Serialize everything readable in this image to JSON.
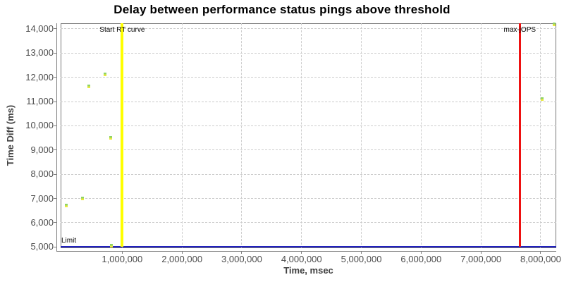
{
  "chart": {
    "title": "Delay between performance status pings above threshold",
    "x_axis_label": "Time, msec",
    "y_axis_label": "Time Diff (ms)"
  },
  "chart_data": {
    "type": "scatter",
    "title": "Delay between performance status pings above threshold",
    "xlabel": "Time, msec",
    "ylabel": "Time Diff (ms)",
    "xlim": [
      -30000,
      8260000
    ],
    "ylim": [
      4950,
      14230
    ],
    "grid": true,
    "legend": "none",
    "x_ticks": [
      {
        "value": 1000000,
        "label": "1,000,000"
      },
      {
        "value": 2000000,
        "label": "2,000,000"
      },
      {
        "value": 3000000,
        "label": "3,000,000"
      },
      {
        "value": 4000000,
        "label": "4,000,000"
      },
      {
        "value": 5000000,
        "label": "5,000,000"
      },
      {
        "value": 6000000,
        "label": "6,000,000"
      },
      {
        "value": 7000000,
        "label": "7,000,000"
      },
      {
        "value": 8000000,
        "label": "8,000,000"
      }
    ],
    "y_ticks": [
      {
        "value": 5000,
        "label": "5,000"
      },
      {
        "value": 6000,
        "label": "6,000"
      },
      {
        "value": 7000,
        "label": "7,000"
      },
      {
        "value": 8000,
        "label": "8,000"
      },
      {
        "value": 9000,
        "label": "9,000"
      },
      {
        "value": 10000,
        "label": "10,000"
      },
      {
        "value": 11000,
        "label": "11,000"
      },
      {
        "value": 12000,
        "label": "12,000"
      },
      {
        "value": 13000,
        "label": "13,000"
      },
      {
        "value": 14000,
        "label": "14,000"
      }
    ],
    "points": [
      {
        "x": 64000,
        "y": 6700
      },
      {
        "x": 335000,
        "y": 7000
      },
      {
        "x": 440000,
        "y": 11640
      },
      {
        "x": 713000,
        "y": 12130
      },
      {
        "x": 808000,
        "y": 9500
      },
      {
        "x": 820000,
        "y": 5040
      },
      {
        "x": 8020000,
        "y": 11110
      },
      {
        "x": 8230000,
        "y": 14180
      }
    ],
    "point_style": {
      "color_top": "#8fd465",
      "color_bottom": "#e9e93f"
    },
    "annotations": {
      "vlines": [
        {
          "value": 1000000,
          "label": "Start RT curve",
          "color": "#ffff00",
          "width": 4,
          "name": "start-rt-curve"
        },
        {
          "value": 7650000,
          "label": "max-jOPS",
          "color": "#ee1111",
          "width": 3,
          "name": "max-jops"
        }
      ],
      "hlines": [
        {
          "value": 5000,
          "label": "Limit",
          "color": "#2121c0",
          "width": 2,
          "name": "limit"
        }
      ]
    },
    "colors": {
      "grid": "#cccccc",
      "axis": "#808080",
      "tick_label": "#4d4d4d",
      "title": "#000000"
    }
  }
}
